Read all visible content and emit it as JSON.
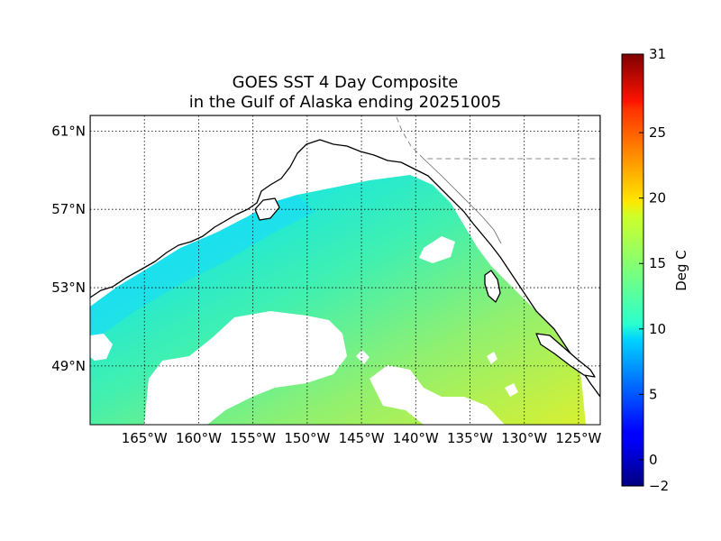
{
  "title_line1": "GOES SST 4 Day Composite",
  "title_line2": "in the Gulf of Alaska ending 20251005",
  "map": {
    "lon_range": [
      -170,
      -123
    ],
    "lat_range": [
      46,
      61.8
    ],
    "lat_ticks": [
      {
        "value": 61,
        "label": "61°N"
      },
      {
        "value": 57,
        "label": "57°N"
      },
      {
        "value": 53,
        "label": "53°N"
      },
      {
        "value": 49,
        "label": "49°N"
      }
    ],
    "lon_ticks": [
      {
        "value": -165,
        "label": "165°W"
      },
      {
        "value": -160,
        "label": "160°W"
      },
      {
        "value": -155,
        "label": "155°W"
      },
      {
        "value": -150,
        "label": "150°W"
      },
      {
        "value": -145,
        "label": "145°W"
      },
      {
        "value": -140,
        "label": "140°W"
      },
      {
        "value": -135,
        "label": "135°W"
      },
      {
        "value": -130,
        "label": "130°W"
      },
      {
        "value": -125,
        "label": "125°W"
      }
    ]
  },
  "colorbar": {
    "label": "Deg C",
    "min": -2,
    "max": 31,
    "ticks": [
      {
        "value": 31,
        "label": "31"
      },
      {
        "value": 25,
        "label": "25"
      },
      {
        "value": 20,
        "label": "20"
      },
      {
        "value": 15,
        "label": "15"
      },
      {
        "value": 10,
        "label": "10"
      },
      {
        "value": 5,
        "label": "5"
      },
      {
        "value": 0,
        "label": "0"
      },
      {
        "value": -2,
        "label": "−2"
      }
    ]
  }
}
